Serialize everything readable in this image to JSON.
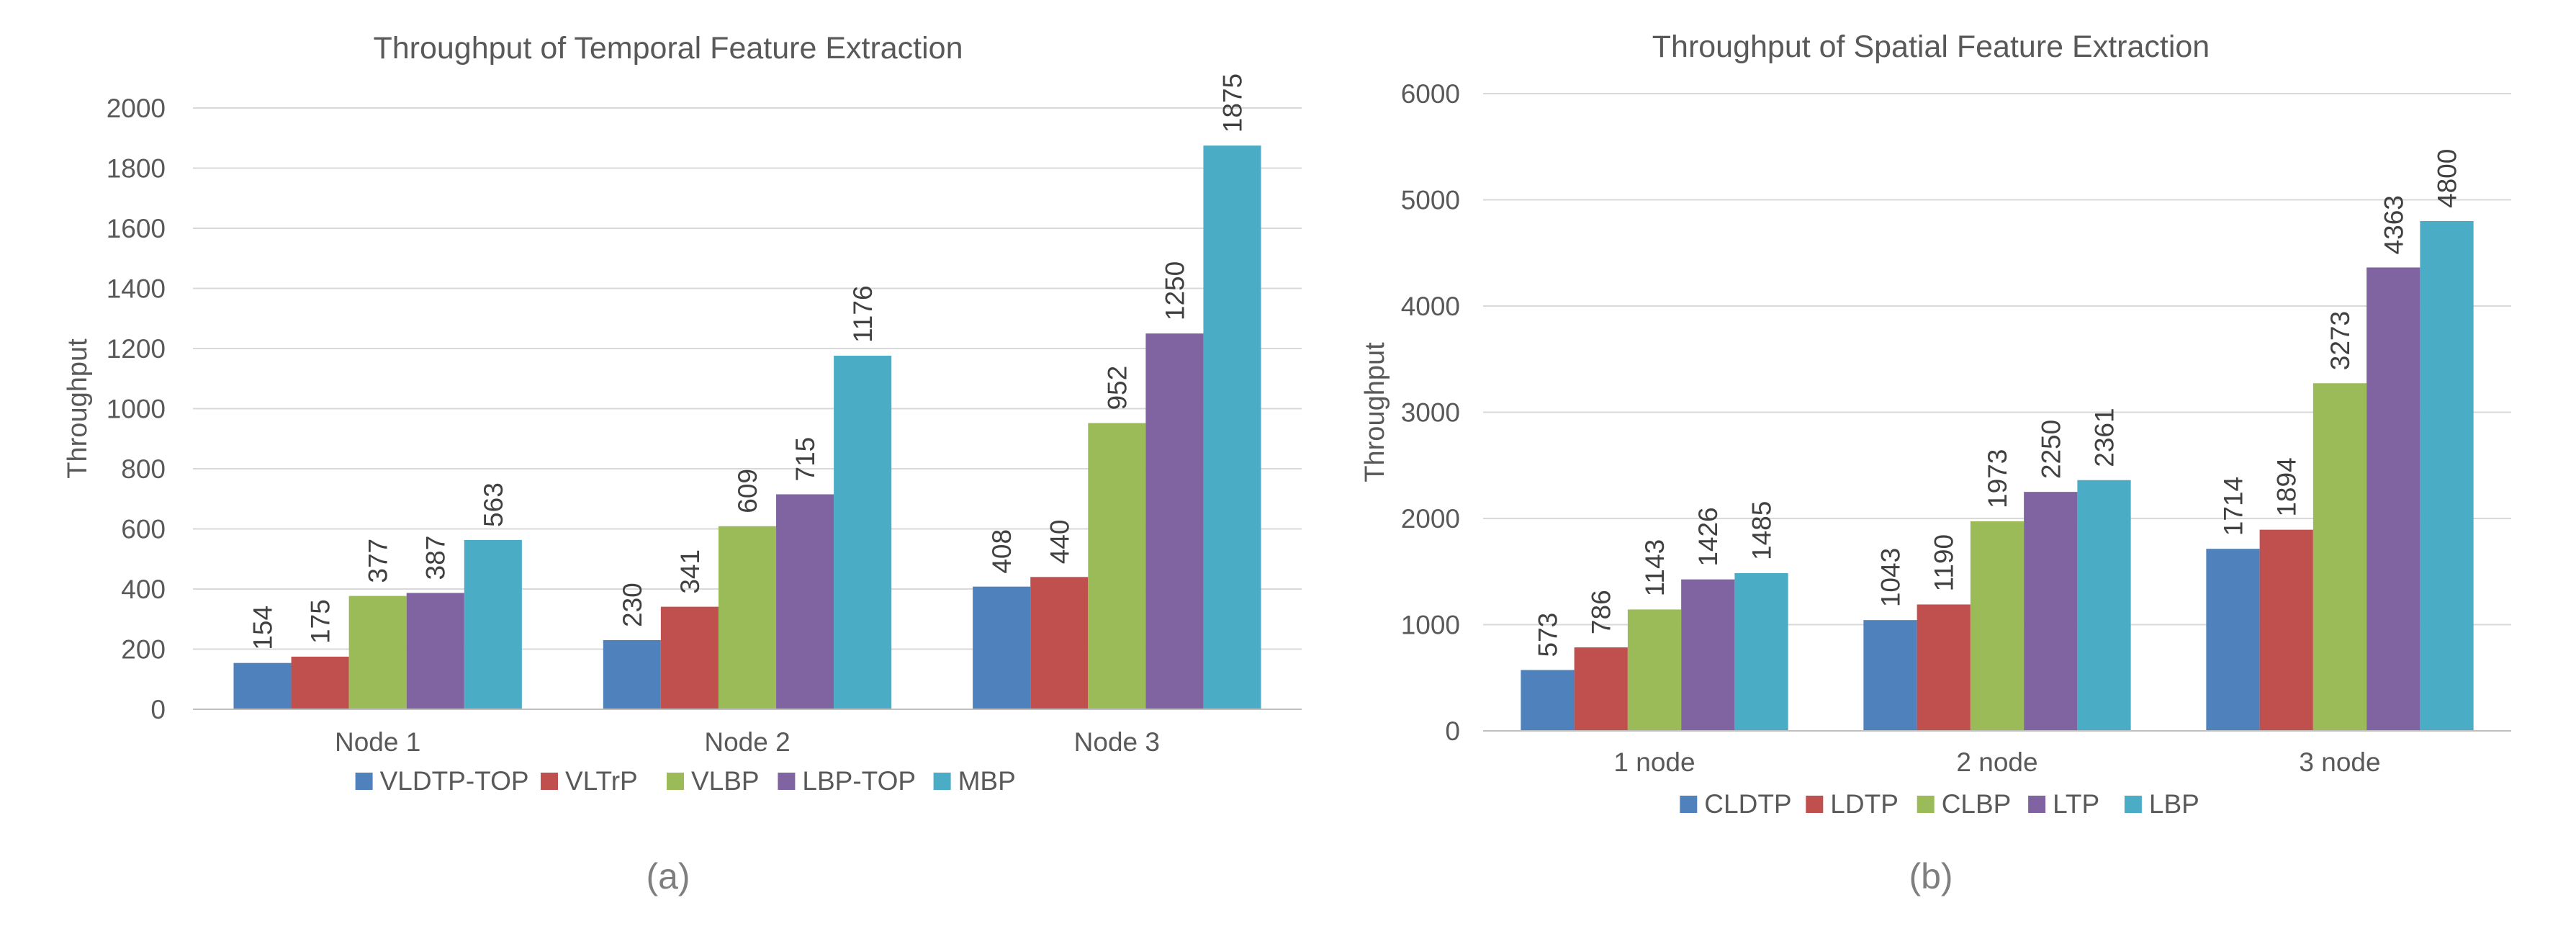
{
  "colors": [
    "#4f81bd",
    "#c0504d",
    "#9bbb59",
    "#8064a2",
    "#4bacc6"
  ],
  "chart_data": [
    {
      "type": "bar",
      "title": "Throughput of Temporal Feature Extraction",
      "xlabel": "",
      "ylabel": "Throughput",
      "ylim": [
        0,
        2000
      ],
      "yticks": [
        0,
        200,
        400,
        600,
        800,
        1000,
        1200,
        1400,
        1600,
        1800,
        2000
      ],
      "categories": [
        "Node 1",
        "Node 2",
        "Node 3"
      ],
      "series": [
        {
          "name": "VLDTP-TOP",
          "values": [
            154,
            230,
            408
          ]
        },
        {
          "name": "VLTrP",
          "values": [
            175,
            341,
            440
          ]
        },
        {
          "name": "VLBP",
          "values": [
            377,
            609,
            952
          ]
        },
        {
          "name": "LBP-TOP",
          "values": [
            387,
            715,
            1250
          ]
        },
        {
          "name": "MBP",
          "values": [
            563,
            1176,
            1875
          ]
        }
      ],
      "legend_position": "bottom",
      "grid": true,
      "caption": "(a)"
    },
    {
      "type": "bar",
      "title": "Throughput of Spatial  Feature Extraction",
      "xlabel": "",
      "ylabel": "Throughput",
      "ylim": [
        0,
        6000
      ],
      "yticks": [
        0,
        1000,
        2000,
        3000,
        4000,
        5000,
        6000
      ],
      "categories": [
        "1 node",
        "2 node",
        "3 node"
      ],
      "series": [
        {
          "name": "CLDTP",
          "values": [
            573,
            1043,
            1714
          ]
        },
        {
          "name": "LDTP",
          "values": [
            786,
            1190,
            1894
          ]
        },
        {
          "name": "CLBP",
          "values": [
            1143,
            1973,
            3273
          ]
        },
        {
          "name": "LTP",
          "values": [
            1426,
            2250,
            4363
          ]
        },
        {
          "name": "LBP",
          "values": [
            1485,
            2361,
            4800
          ]
        }
      ],
      "legend_position": "bottom",
      "grid": true,
      "caption": "(b)"
    }
  ]
}
